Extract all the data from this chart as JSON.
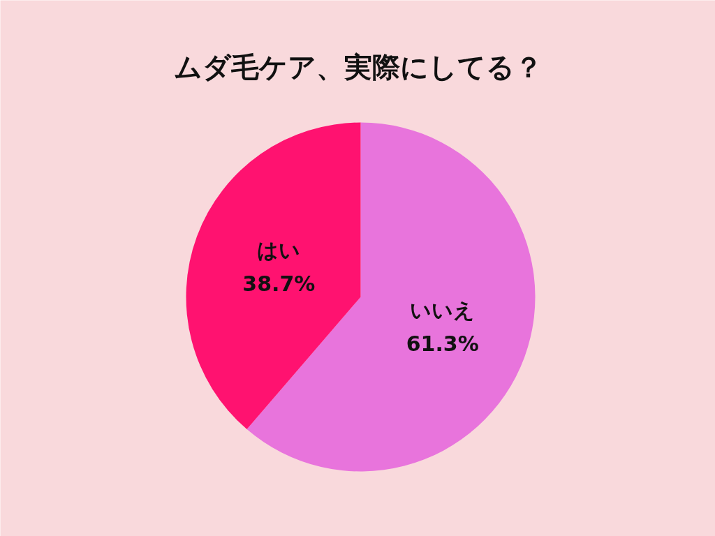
{
  "chart_data": {
    "type": "pie",
    "title": "ムダ毛ケア、実際にしてる？",
    "categories": [
      "いいえ",
      "はい"
    ],
    "values": [
      61.3,
      38.7
    ],
    "value_labels": [
      "61.3%",
      "38.7%"
    ],
    "colors": [
      "#e874dc",
      "#ff1270"
    ]
  }
}
